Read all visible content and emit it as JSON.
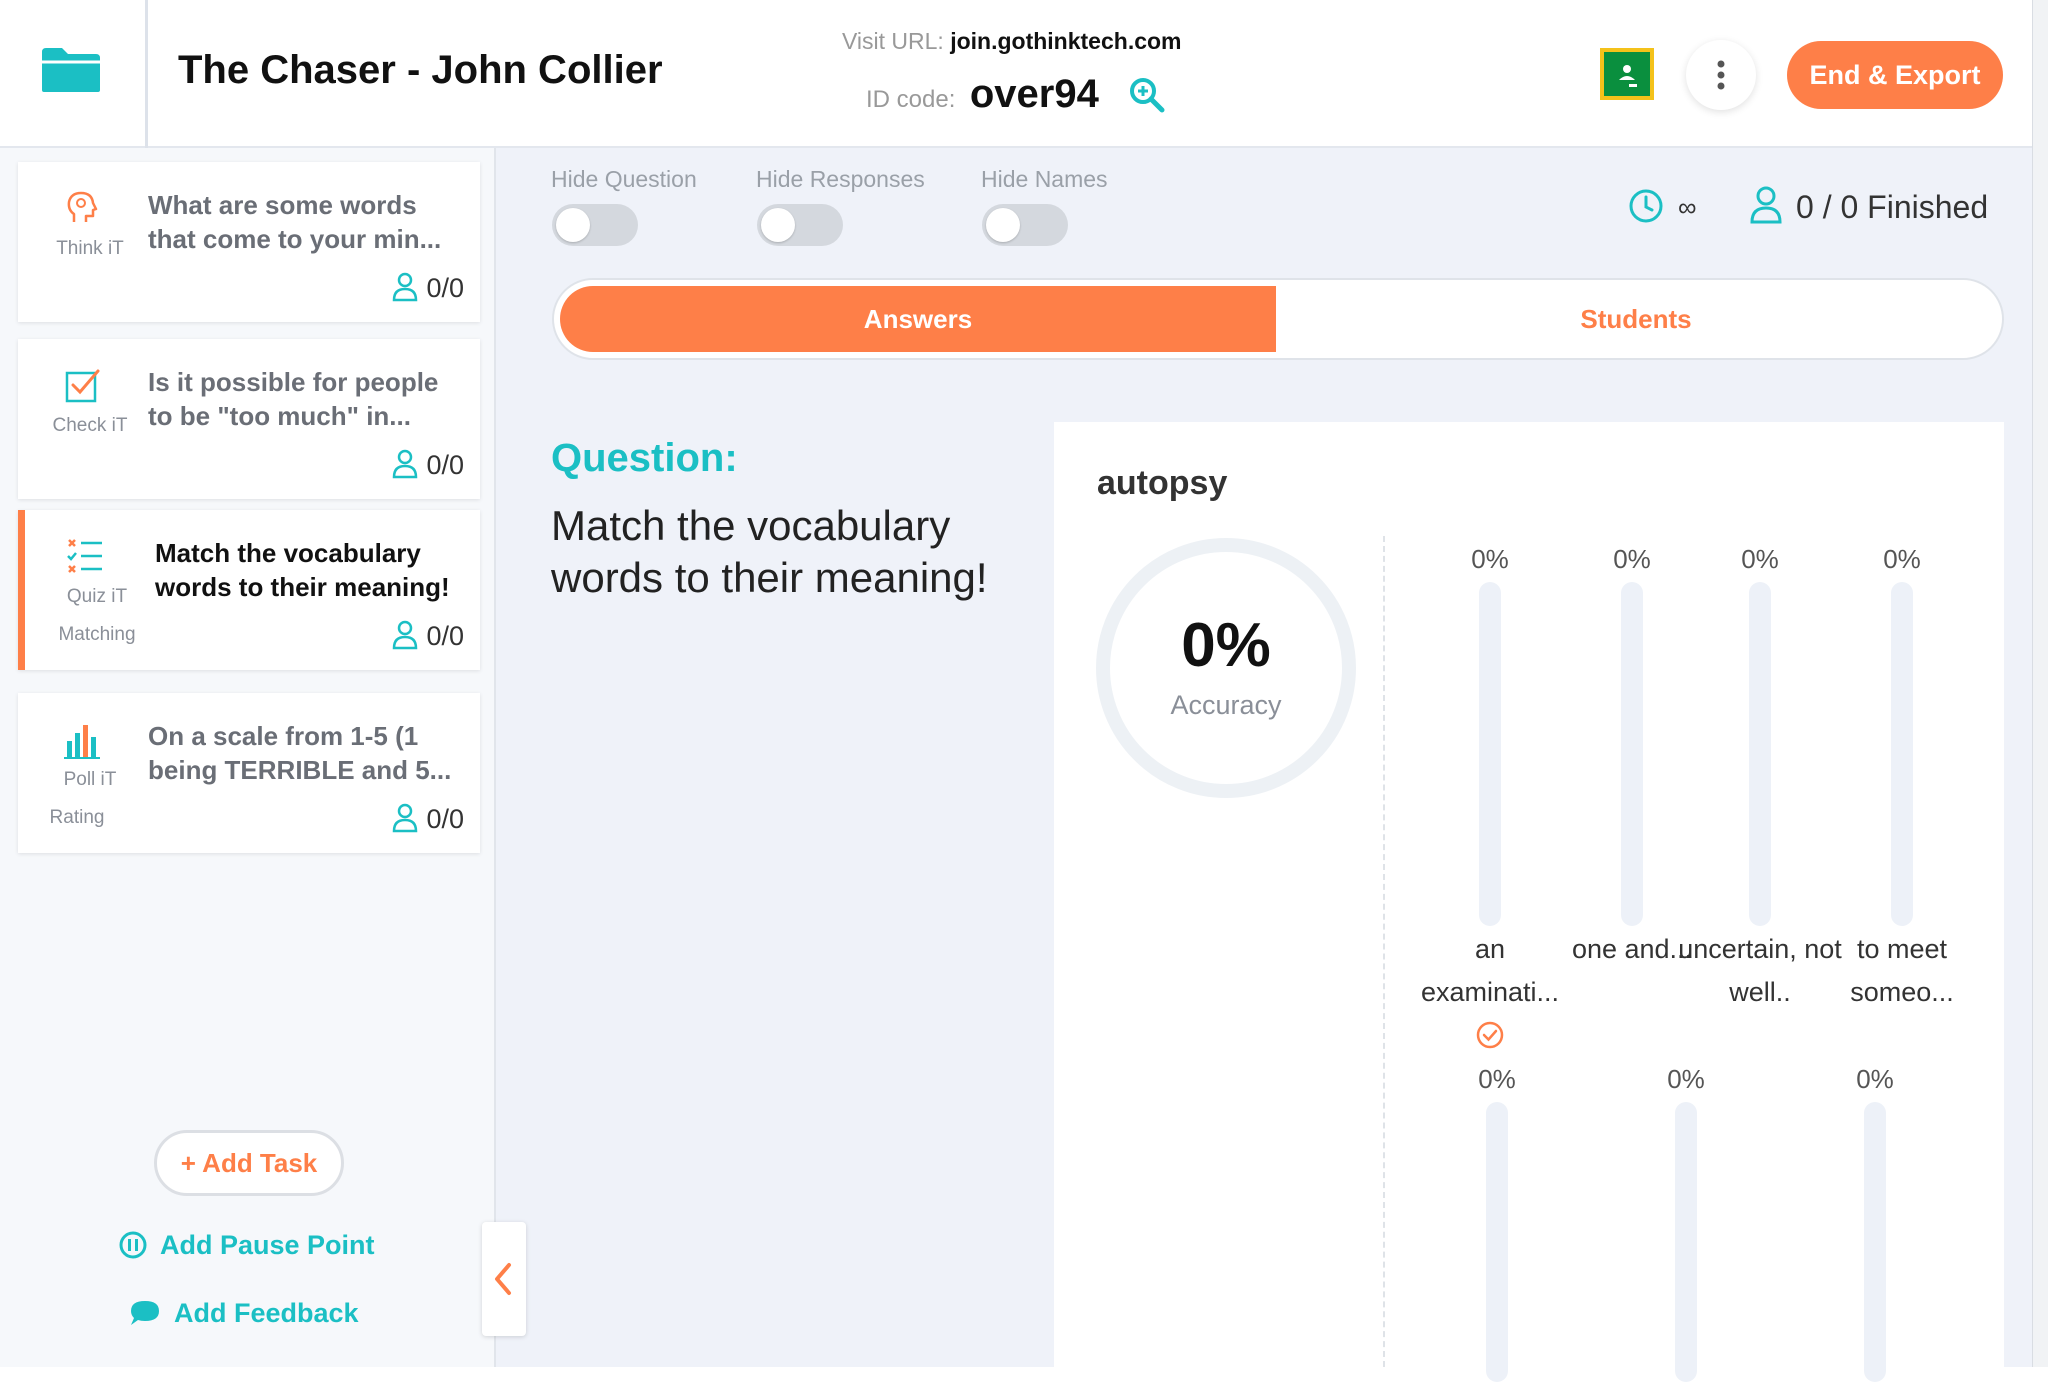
{
  "header": {
    "title": "The Chaser - John Collier",
    "visit_label": "Visit URL:",
    "visit_url": "join.gothinktech.com",
    "id_label": "ID code:",
    "id_code": "over94",
    "end_button": "End & Export"
  },
  "sidebar": {
    "tasks": [
      {
        "type": "Think iT",
        "subtype": "",
        "title": "What are some words that come to your min...",
        "count": "0/0",
        "icon": "head-icon"
      },
      {
        "type": "Check iT",
        "subtype": "",
        "title": "Is it possible for people to be \"too much\" in...",
        "count": "0/0",
        "icon": "checkbox-icon"
      },
      {
        "type": "Quiz iT",
        "subtype": "Matching",
        "title": "Match the vocabulary words to their meaning!",
        "count": "0/0",
        "icon": "list-check-icon",
        "active": true
      },
      {
        "type": "Poll iT",
        "subtype": "Rating",
        "title": "On a scale from 1-5 (1 being TERRIBLE and 5...",
        "count": "0/0",
        "icon": "bar-chart-icon"
      }
    ],
    "add_task": "+ Add Task",
    "add_pause": "Add Pause Point",
    "add_feedback": "Add Feedback"
  },
  "controls": {
    "hide_question": "Hide Question",
    "hide_responses": "Hide Responses",
    "hide_names": "Hide Names",
    "timer": "∞",
    "finished": "0 / 0 Finished"
  },
  "tabs": {
    "answers": "Answers",
    "students": "Students"
  },
  "question": {
    "label": "Question:",
    "text": "Match the vocabulary words to their meaning!"
  },
  "result": {
    "word": "autopsy",
    "accuracy_value": "0%",
    "accuracy_label": "Accuracy"
  },
  "chart_data": {
    "type": "bar",
    "series": [
      {
        "categories": [
          "an examinati...",
          "one and...",
          "uncertain, not well..",
          "to meet someo..."
        ],
        "values": [
          0,
          0,
          0,
          0
        ],
        "value_labels": [
          "0%",
          "0%",
          "0%",
          "0%"
        ],
        "correct_index": 0
      },
      {
        "categories": [
          "",
          "",
          ""
        ],
        "values": [
          0,
          0,
          0
        ],
        "value_labels": [
          "0%",
          "0%",
          "0%"
        ]
      }
    ],
    "ylim": [
      0,
      100
    ]
  },
  "colors": {
    "accent": "#fe7f48",
    "teal": "#1bbfc4",
    "classroom_green": "#0a8f3e"
  }
}
